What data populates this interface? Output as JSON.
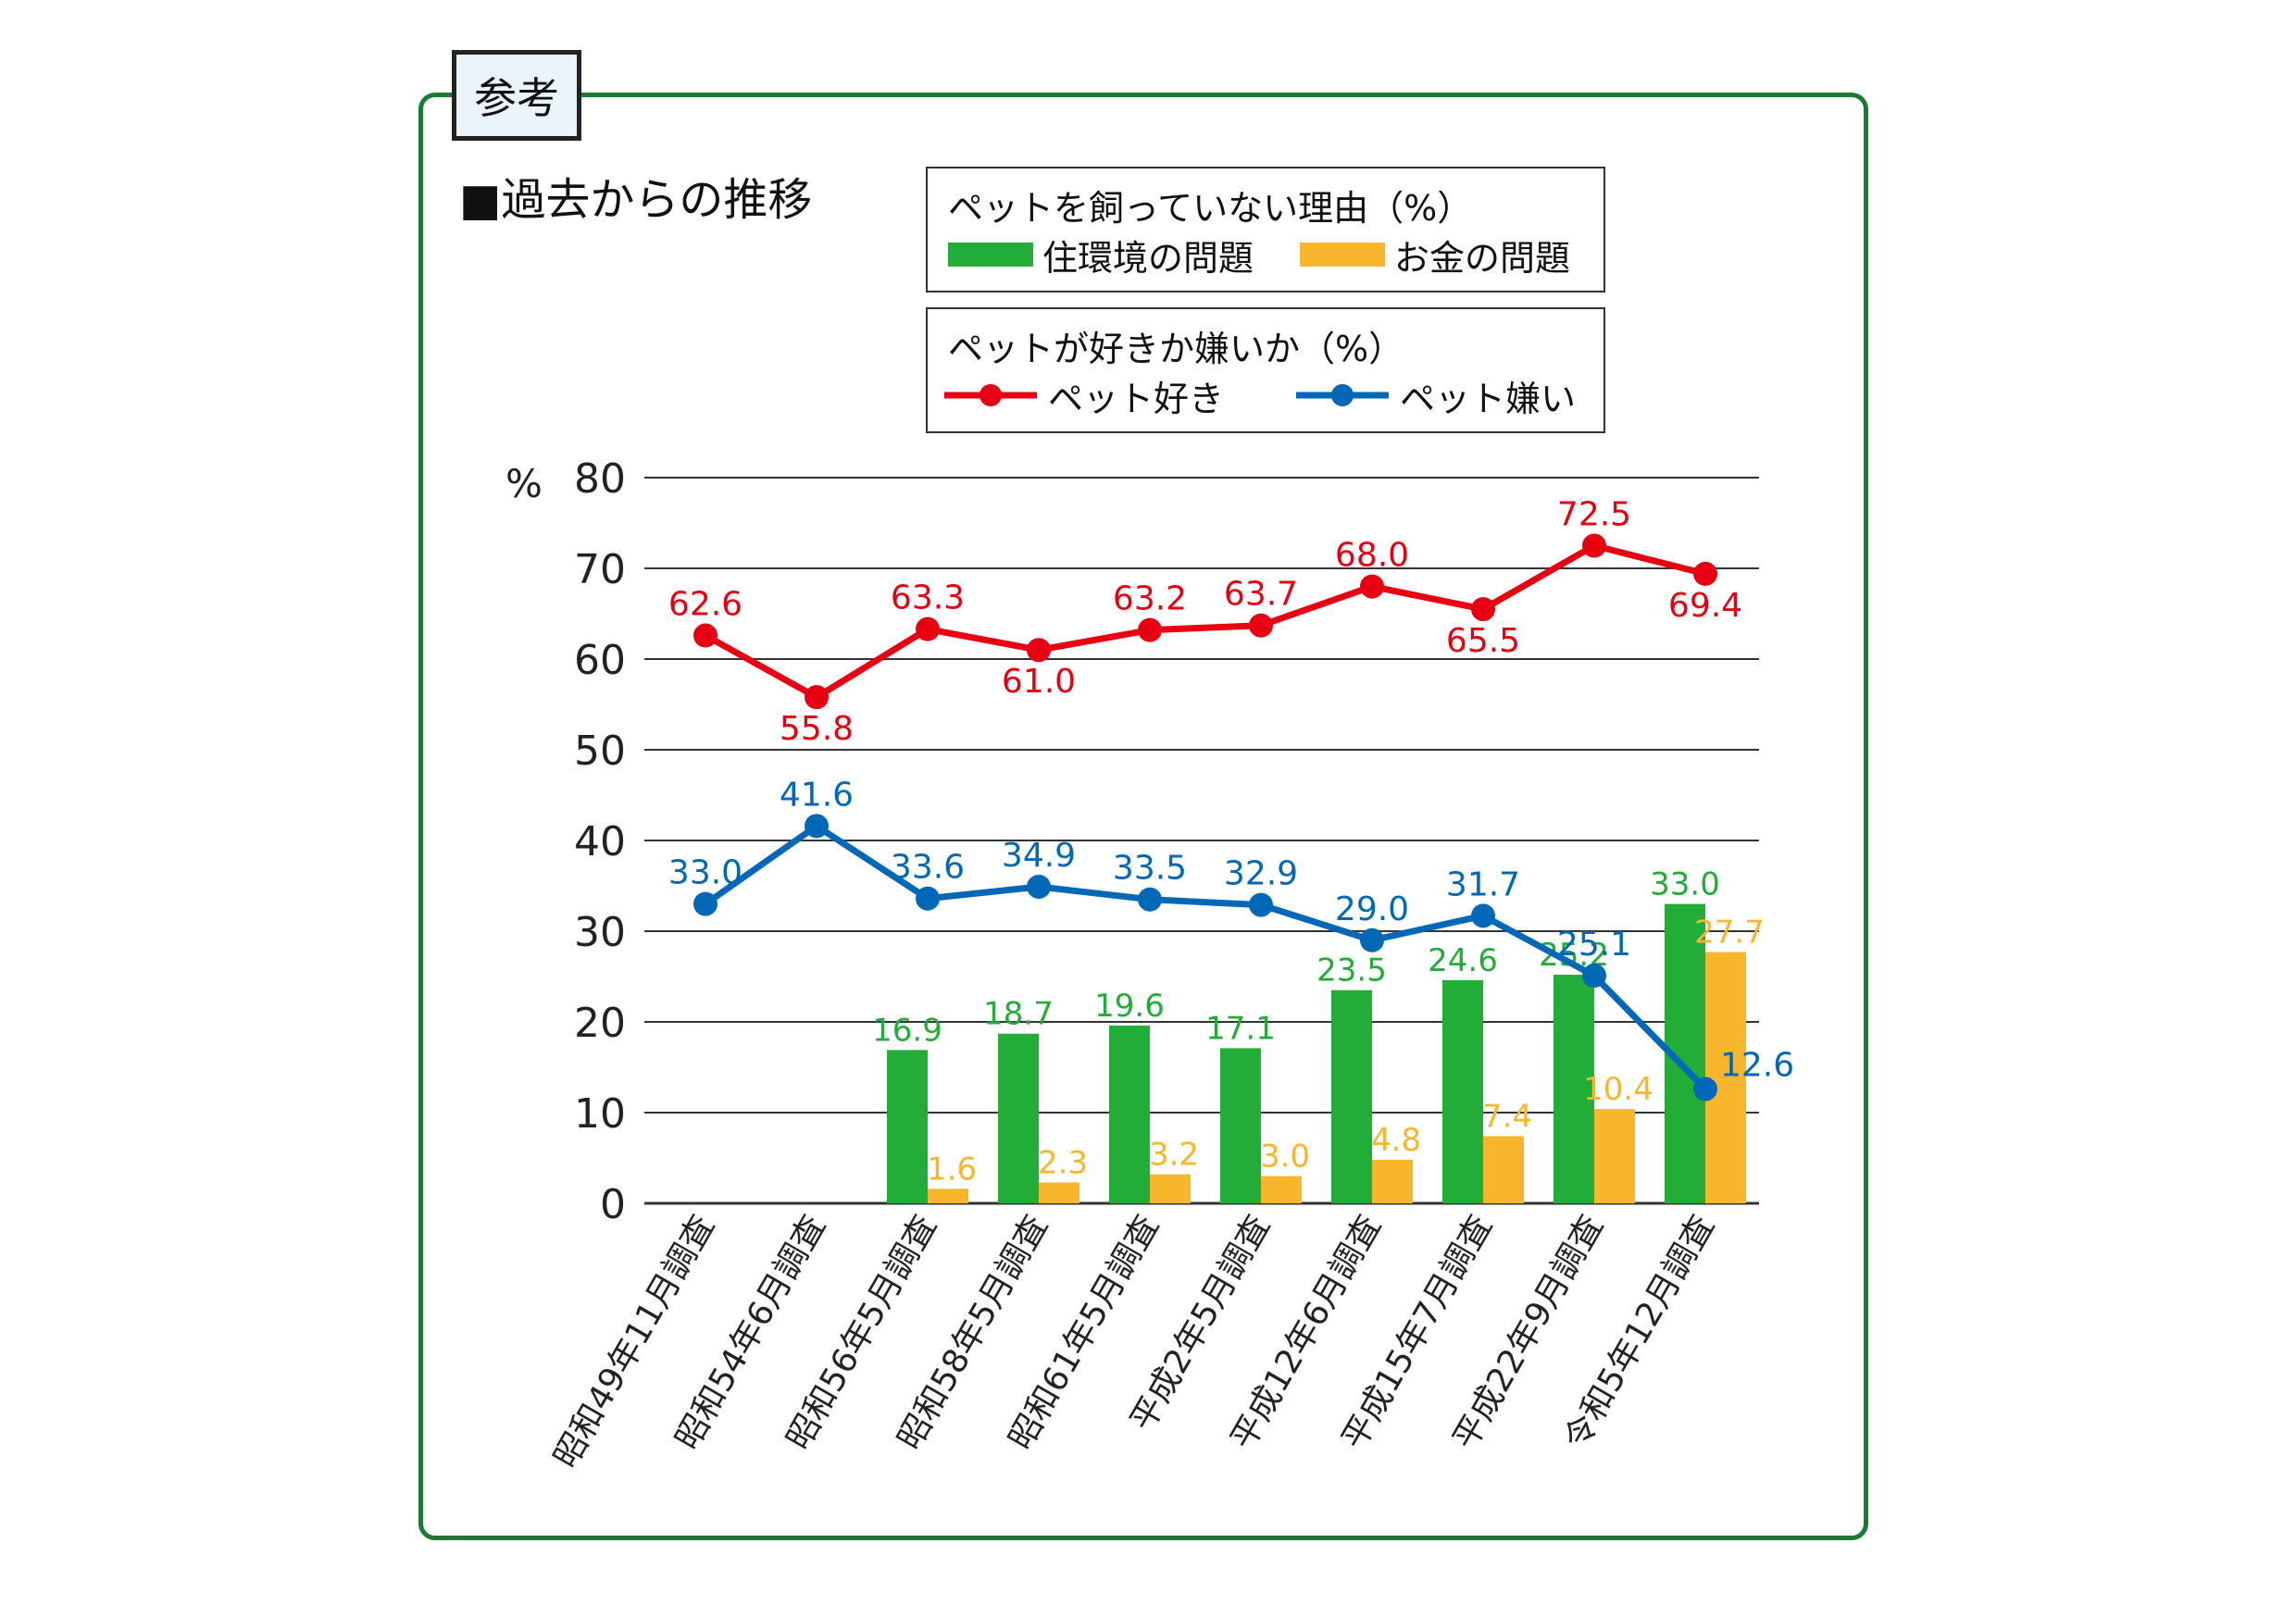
{
  "tag_label": "参考",
  "section_title": "■過去からの推移",
  "legend_bars": {
    "title": "ペットを飼っていない理由（%）",
    "items": [
      {
        "label": "住環境の問題",
        "color": "#22ac38"
      },
      {
        "label": "お金の問題",
        "color": "#f8b62d"
      }
    ]
  },
  "legend_lines": {
    "title": "ペットが好きか嫌いか（%）",
    "items": [
      {
        "label": "ペット好き",
        "color": "#e60012"
      },
      {
        "label": "ペット嫌い",
        "color": "#0068b7"
      }
    ]
  },
  "colors": {
    "frame": "#1d7a32",
    "grid": "#333333"
  },
  "chart_data": {
    "type": "bar",
    "unit_label": "%",
    "categories": [
      "昭和49年11月調査",
      "昭和54年6月調査",
      "昭和56年5月調査",
      "昭和58年5月調査",
      "昭和61年5月調査",
      "平成2年5月調査",
      "平成12年6月調査",
      "平成15年7月調査",
      "平成22年9月調査",
      "令和5年12月調査"
    ],
    "ylim": [
      0,
      80
    ],
    "yticks": [
      0,
      10,
      20,
      30,
      40,
      50,
      60,
      70,
      80
    ],
    "grid": true,
    "bar_series": [
      {
        "name": "住環境の問題",
        "color": "#22ac38",
        "values": [
          null,
          null,
          16.9,
          18.7,
          19.6,
          17.1,
          23.5,
          24.6,
          25.2,
          33.0
        ]
      },
      {
        "name": "お金の問題",
        "color": "#f8b62d",
        "values": [
          null,
          null,
          1.6,
          2.3,
          3.2,
          3.0,
          4.8,
          7.4,
          10.4,
          27.7
        ]
      }
    ],
    "line_series": [
      {
        "name": "ペット好き",
        "color": "#e60012",
        "values": [
          62.6,
          55.8,
          63.3,
          61.0,
          63.2,
          63.7,
          68.0,
          65.5,
          72.5,
          69.4
        ]
      },
      {
        "name": "ペット嫌い",
        "color": "#0068b7",
        "values": [
          33.0,
          41.6,
          33.6,
          34.9,
          33.5,
          32.9,
          29.0,
          31.7,
          25.1,
          12.6
        ]
      }
    ]
  }
}
